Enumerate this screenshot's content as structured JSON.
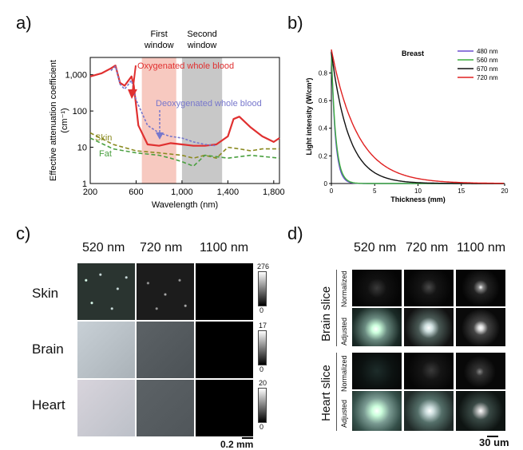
{
  "panel_labels": {
    "a": "a)",
    "b": "b)",
    "c": "c)",
    "d": "d)"
  },
  "panel_a": {
    "window_labels": {
      "first_1": "First",
      "first_2": "window",
      "second_1": "Second",
      "second_2": "window"
    },
    "annotations": {
      "oxy": "Oxygenated whole blood",
      "deoxy": "Deoxygenated whole blood",
      "skin": "Skin",
      "fat": "Fat"
    },
    "ylabel": "Effective attenuation coefficient",
    "ylabel_unit": "(cm⁻¹)",
    "xlabel": "Wavelength (nm)",
    "yticks": [
      "1,000",
      "100",
      "10",
      "1"
    ],
    "xticks": [
      "200",
      "600",
      "1,000",
      "1,400",
      "1,800"
    ],
    "colors": {
      "oxy": "#e03030",
      "deoxy": "#7777cc",
      "skin": "#8a8a20",
      "fat": "#4aa040",
      "first": "#f7c9c0",
      "second": "#c8c8c8"
    }
  },
  "panel_b": {
    "ylabel": "Light intensity (W/cm²)",
    "xlabel": "Thickness (mm)",
    "legend_title": "Breast",
    "yticks": [
      "0.8",
      "0.6",
      "0.4",
      "0.2",
      "0"
    ],
    "xticks": [
      "0",
      "5",
      "10",
      "15",
      "20"
    ]
  },
  "panel_c": {
    "columns": [
      "520 nm",
      "720 nm",
      "1100 nm"
    ],
    "rows": [
      "Skin",
      "Brain",
      "Heart"
    ],
    "colorbar_max": [
      "276",
      "17",
      "20"
    ],
    "colorbar_min": [
      "0",
      "0",
      "0"
    ],
    "scalebar": "0.2 mm"
  },
  "panel_d": {
    "columns": [
      "520 nm",
      "720 nm",
      "1100 nm"
    ],
    "groups": [
      "Brain slice",
      "Heart slice"
    ],
    "sublabels": [
      "Normalized",
      "Adjusted"
    ],
    "scalebar": "30 um"
  },
  "chart_data": [
    {
      "type": "line",
      "title": "",
      "xlabel": "Wavelength (nm)",
      "ylabel": "Effective attenuation coefficient (cm⁻¹)",
      "xlim": [
        200,
        1850
      ],
      "ylim": [
        1,
        3000
      ],
      "yscale": "log",
      "grid": false,
      "shaded_regions": [
        {
          "name": "First window",
          "x": [
            650,
            950
          ]
        },
        {
          "name": "Second window",
          "x": [
            1000,
            1350
          ]
        }
      ],
      "series": [
        {
          "name": "Oxygenated whole blood",
          "x": [
            200,
            300,
            380,
            420,
            460,
            500,
            560,
            580,
            620,
            700,
            800,
            900,
            1000,
            1100,
            1200,
            1300,
            1400,
            1450,
            1500,
            1600,
            1700,
            1800,
            1850
          ],
          "y": [
            900,
            1100,
            1500,
            1800,
            600,
            500,
            900,
            500,
            40,
            12,
            11,
            13,
            12,
            11,
            11,
            12,
            20,
            60,
            70,
            35,
            20,
            14,
            18
          ]
        },
        {
          "name": "Deoxygenated whole blood",
          "x": [
            380,
            420,
            460,
            500,
            560,
            600,
            700,
            800,
            900,
            1000,
            1100,
            1200,
            1300
          ],
          "y": [
            1300,
            1700,
            550,
            400,
            700,
            200,
            40,
            25,
            20,
            18,
            14,
            12,
            11
          ]
        },
        {
          "name": "Skin",
          "x": [
            200,
            400,
            600,
            800,
            1000,
            1100,
            1200,
            1300,
            1400,
            1500,
            1600,
            1700,
            1850
          ],
          "y": [
            25,
            12,
            8,
            7,
            6,
            5,
            6,
            5,
            10,
            9,
            8,
            9,
            9
          ]
        },
        {
          "name": "Fat",
          "x": [
            200,
            400,
            600,
            800,
            900,
            1000,
            1100,
            1200,
            1400,
            1600,
            1850
          ],
          "y": [
            18,
            9,
            7,
            6,
            5,
            4,
            3,
            6,
            5,
            6,
            5
          ]
        }
      ]
    },
    {
      "type": "line",
      "title": "",
      "xlabel": "Thickness (mm)",
      "ylabel": "Light intensity (W/cm²)",
      "xlim": [
        0,
        20
      ],
      "ylim": [
        0,
        0.97
      ],
      "legend_title": "Breast",
      "legend_position": "top-right",
      "series": [
        {
          "name": "480 nm",
          "color": "#6a4fcf",
          "i0": 0.95,
          "mu": 2.2
        },
        {
          "name": "560 nm",
          "color": "#3fae3f",
          "i0": 0.95,
          "mu": 2.0
        },
        {
          "name": "670 nm",
          "color": "#111111",
          "i0": 0.95,
          "mu": 0.5
        },
        {
          "name": "720 nm",
          "color": "#e02020",
          "i0": 0.97,
          "mu": 0.33
        }
      ]
    }
  ]
}
